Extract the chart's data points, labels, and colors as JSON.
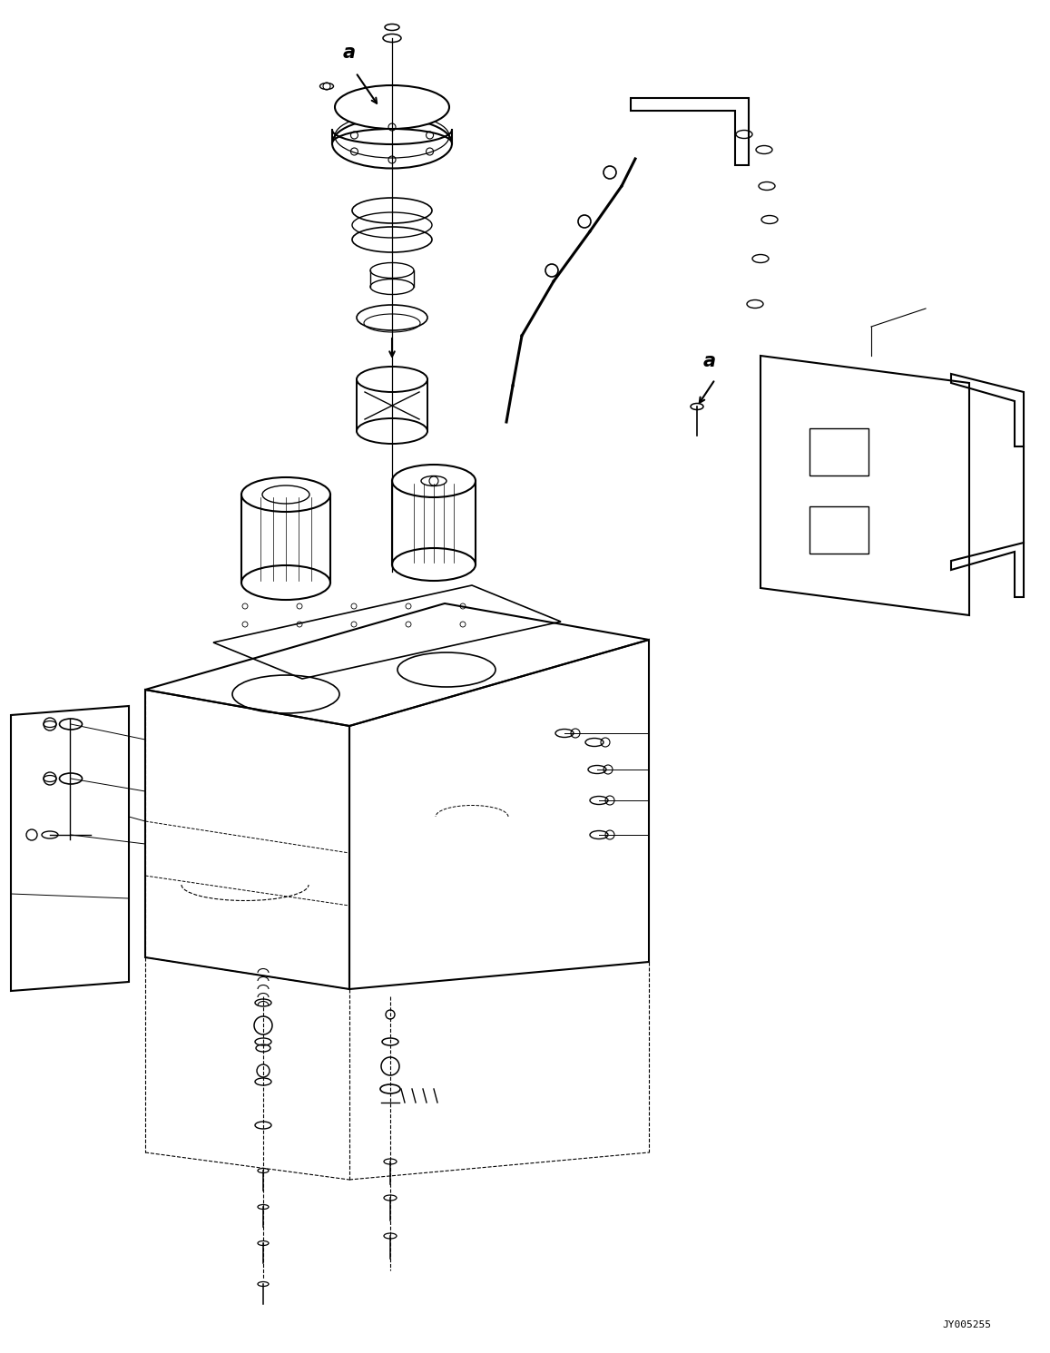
{
  "background_color": "#ffffff",
  "line_color": "#000000",
  "figure_width": 11.57,
  "figure_height": 14.91,
  "watermark": "JY005255"
}
